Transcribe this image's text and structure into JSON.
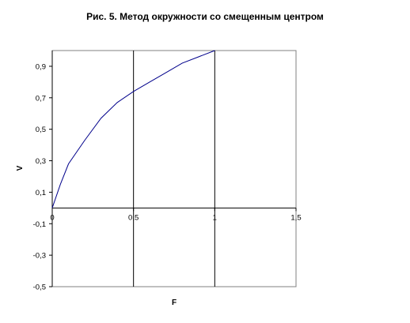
{
  "chart_data": {
    "type": "line",
    "title": "Рис. 5. Метод окружности со смещенным центром",
    "xlabel": "F",
    "ylabel": "V",
    "xlim": [
      0,
      1.5
    ],
    "ylim": [
      -0.5,
      1.0
    ],
    "x_ticks": [
      0,
      0.5,
      1,
      1.5
    ],
    "x_tick_labels": [
      "0",
      "0,5",
      "1",
      "1,5"
    ],
    "y_ticks": [
      -0.5,
      -0.3,
      -0.1,
      0.1,
      0.3,
      0.5,
      0.7,
      0.9
    ],
    "y_tick_labels": [
      "-0,5",
      "-0,3",
      "-0,1",
      "0,1",
      "0,3",
      "0,5",
      "0,7",
      "0,9"
    ],
    "vertical_gridlines_at": [
      0.5,
      1
    ],
    "horizontal_grid": false,
    "legend": "none",
    "series": [
      {
        "color": "#00008b",
        "x": [
          0,
          0.05,
          0.1,
          0.2,
          0.3,
          0.4,
          0.5,
          0.6,
          0.7,
          0.8,
          0.9,
          1.0
        ],
        "values": [
          0,
          0.15,
          0.28,
          0.43,
          0.57,
          0.67,
          0.74,
          0.8,
          0.86,
          0.92,
          0.96,
          1.0
        ]
      }
    ]
  }
}
